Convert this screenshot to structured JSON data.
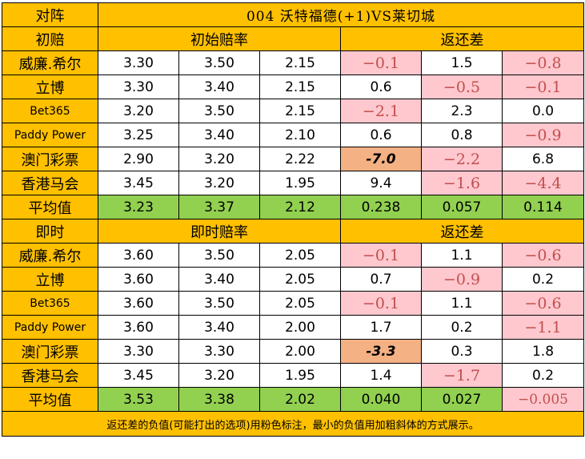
{
  "header": {
    "label": "对阵",
    "match_title": "004 沃特福德(+1)VS莱切城"
  },
  "colors": {
    "header_bg": "#ffc000",
    "average_bg": "#92d050",
    "negative_bg": "#ffc7ce",
    "negative_text": "#c0504d",
    "minimum_bg": "#f4b183"
  },
  "initial": {
    "section_label": "初赔",
    "odds_label": "初始赔率",
    "diff_label": "返还差",
    "rows": [
      {
        "bookmaker": "威廉.希尔",
        "odds": [
          "3.30",
          "3.50",
          "2.15"
        ],
        "diff": [
          "−0.1",
          "1.5",
          "−0.8"
        ]
      },
      {
        "bookmaker": "立博",
        "odds": [
          "3.30",
          "3.40",
          "2.15"
        ],
        "diff": [
          "0.6",
          "−0.5",
          "−0.1"
        ]
      },
      {
        "bookmaker": "Bet365",
        "odds": [
          "3.20",
          "3.50",
          "2.15"
        ],
        "diff": [
          "−2.1",
          "2.3",
          "0.0"
        ]
      },
      {
        "bookmaker": "Paddy Power",
        "odds": [
          "3.25",
          "3.40",
          "2.10"
        ],
        "diff": [
          "0.6",
          "0.8",
          "−0.9"
        ]
      },
      {
        "bookmaker": "澳门彩票",
        "odds": [
          "2.90",
          "3.20",
          "2.22"
        ],
        "diff": [
          "-7.0",
          "−2.2",
          "6.8"
        ]
      },
      {
        "bookmaker": "香港马会",
        "odds": [
          "3.45",
          "3.20",
          "1.95"
        ],
        "diff": [
          "9.4",
          "−1.6",
          "−4.4"
        ]
      }
    ],
    "average": {
      "label": "平均值",
      "odds": [
        "3.23",
        "3.37",
        "2.12"
      ],
      "diff": [
        "0.238",
        "0.057",
        "0.114"
      ]
    }
  },
  "live": {
    "section_label": "即时",
    "odds_label": "即时赔率",
    "diff_label": "返还差",
    "rows": [
      {
        "bookmaker": "威廉.希尔",
        "odds": [
          "3.60",
          "3.50",
          "2.05"
        ],
        "diff": [
          "−0.1",
          "1.1",
          "−0.6"
        ]
      },
      {
        "bookmaker": "立博",
        "odds": [
          "3.60",
          "3.40",
          "2.05"
        ],
        "diff": [
          "0.7",
          "−0.9",
          "0.2"
        ]
      },
      {
        "bookmaker": "Bet365",
        "odds": [
          "3.60",
          "3.50",
          "2.05"
        ],
        "diff": [
          "−0.1",
          "1.1",
          "−0.6"
        ]
      },
      {
        "bookmaker": "Paddy Power",
        "odds": [
          "3.60",
          "3.40",
          "2.00"
        ],
        "diff": [
          "1.7",
          "0.2",
          "−1.1"
        ]
      },
      {
        "bookmaker": "澳门彩票",
        "odds": [
          "3.30",
          "3.30",
          "2.00"
        ],
        "diff": [
          "-3.3",
          "0.3",
          "1.8"
        ]
      },
      {
        "bookmaker": "香港马会",
        "odds": [
          "3.45",
          "3.20",
          "1.95"
        ],
        "diff": [
          "1.4",
          "−1.7",
          "0.2"
        ]
      }
    ],
    "average": {
      "label": "平均值",
      "odds": [
        "3.53",
        "3.38",
        "2.02"
      ],
      "diff": [
        "0.040",
        "0.027",
        "−0.005"
      ]
    }
  },
  "footnote": "返还差的负值(可能打出的选项)用粉色标注，最小的负值用加粗斜体的方式展示。"
}
